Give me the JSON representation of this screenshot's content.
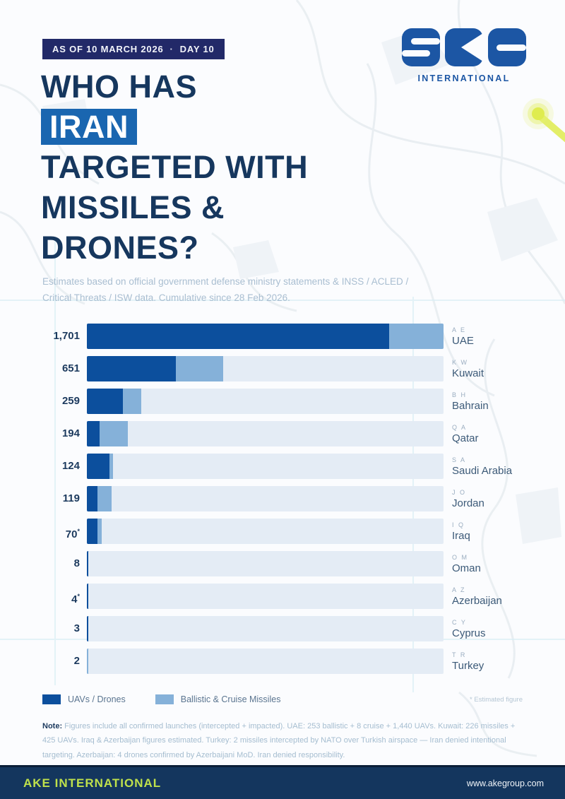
{
  "header": {
    "badge_date": "AS OF 10 MARCH 2026",
    "badge_separator": "·",
    "badge_day": "DAY 10",
    "logo_text": "ake",
    "logo_subtext": "INTERNATIONAL",
    "title_line1": "WHO HAS",
    "title_highlight": "IRAN",
    "title_line2": "TARGETED WITH",
    "title_line3": "MISSILES &",
    "title_line4": "DRONES?",
    "subtitle": "Estimates based on official government defense ministry statements & INSS / ACLED / Critical Threats / ISW data. Cumulative since 28 Feb 2026."
  },
  "chart_data": {
    "type": "bar",
    "orientation": "horizontal",
    "xlim": [
      0,
      1701
    ],
    "grid": false,
    "legend_position": "bottom",
    "legend": [
      {
        "label": "UAVs / Drones",
        "color": "#0c4f9d"
      },
      {
        "label": "Ballistic & Cruise Missiles",
        "color": "#85b1d9"
      }
    ],
    "estimated_note": "* Estimated figure",
    "rows": [
      {
        "code": "AE",
        "country": "UAE",
        "total": 1701,
        "label": "1,701",
        "uav": 1440,
        "missiles": 261,
        "estimated": false
      },
      {
        "code": "KW",
        "country": "Kuwait",
        "total": 651,
        "label": "651",
        "uav": 425,
        "missiles": 226,
        "estimated": false
      },
      {
        "code": "BH",
        "country": "Bahrain",
        "total": 259,
        "label": "259",
        "uav": 171,
        "missiles": 88,
        "estimated": false
      },
      {
        "code": "QA",
        "country": "Qatar",
        "total": 194,
        "label": "194",
        "uav": 61,
        "missiles": 133,
        "estimated": false
      },
      {
        "code": "SA",
        "country": "Saudi Arabia",
        "total": 124,
        "label": "124",
        "uav": 109,
        "missiles": 15,
        "estimated": false
      },
      {
        "code": "JO",
        "country": "Jordan",
        "total": 119,
        "label": "119",
        "uav": 51,
        "missiles": 68,
        "estimated": false
      },
      {
        "code": "IQ",
        "country": "Iraq",
        "total": 70,
        "label": "70",
        "uav": 50,
        "missiles": 20,
        "estimated": true
      },
      {
        "code": "OM",
        "country": "Oman",
        "total": 8,
        "label": "8",
        "uav": 8,
        "missiles": 0,
        "estimated": false
      },
      {
        "code": "AZ",
        "country": "Azerbaijan",
        "total": 4,
        "label": "4",
        "uav": 4,
        "missiles": 0,
        "estimated": true
      },
      {
        "code": "CY",
        "country": "Cyprus",
        "total": 3,
        "label": "3",
        "uav": 3,
        "missiles": 0,
        "estimated": false
      },
      {
        "code": "TR",
        "country": "Turkey",
        "total": 2,
        "label": "2",
        "uav": 0,
        "missiles": 2,
        "estimated": false
      }
    ]
  },
  "footnote": {
    "label": "Note:",
    "text": " Figures include all confirmed launches (intercepted + impacted). UAE: 253 ballistic + 8 cruise + 1,440 UAVs. Kuwait: 226 missiles + 425 UAVs. Iraq & Azerbaijan figures estimated. Turkey: 2 missiles intercepted by NATO over Turkish airspace — Iran denied intentional targeting. Azerbaijan: 4 drones confirmed by Azerbaijani MoD. Iran denied responsibility."
  },
  "footer": {
    "brand": "AKE INTERNATIONAL",
    "url": "www.akegroup.com"
  },
  "colors": {
    "uav_dark_blue": "#0c4f9d",
    "missile_light_blue": "#85b1d9",
    "bar_track": "#e4ecf5",
    "badge_bg": "#222968",
    "highlight_bg": "#1a66b0",
    "title_navy": "#16375e",
    "footer_bg": "#14365e",
    "footer_accent": "#bfe14b",
    "logo_blue": "#1c56a4",
    "map_marker_yellow": "#dfec4f"
  }
}
